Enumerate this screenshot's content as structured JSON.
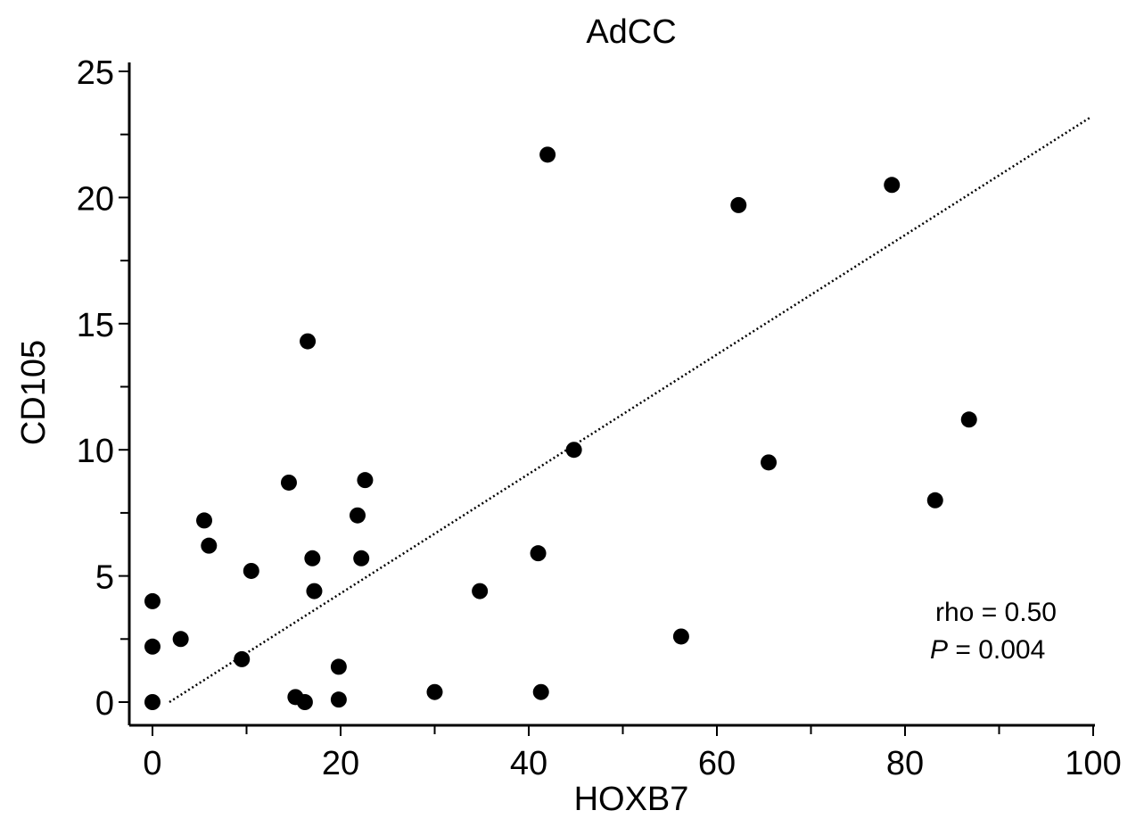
{
  "chart_data": {
    "type": "scatter",
    "title": "AdCC",
    "xlabel": "HOXB7",
    "ylabel": "CD105",
    "xlim": [
      0,
      100
    ],
    "ylim": [
      0,
      25
    ],
    "x_ticks": [
      0,
      20,
      40,
      60,
      80,
      100
    ],
    "y_ticks": [
      0,
      5,
      10,
      15,
      20,
      25
    ],
    "grid": false,
    "points": [
      {
        "x": 0,
        "y": 0
      },
      {
        "x": 0,
        "y": 2.2
      },
      {
        "x": 0,
        "y": 4.0
      },
      {
        "x": 3,
        "y": 2.5
      },
      {
        "x": 5.5,
        "y": 7.2
      },
      {
        "x": 6,
        "y": 6.2
      },
      {
        "x": 9.5,
        "y": 1.7
      },
      {
        "x": 10.5,
        "y": 5.2
      },
      {
        "x": 14.5,
        "y": 8.7
      },
      {
        "x": 15.2,
        "y": 0.2
      },
      {
        "x": 16.2,
        "y": 0
      },
      {
        "x": 16.5,
        "y": 14.3
      },
      {
        "x": 17,
        "y": 5.7
      },
      {
        "x": 17.2,
        "y": 4.4
      },
      {
        "x": 19.8,
        "y": 0.1
      },
      {
        "x": 19.8,
        "y": 1.4
      },
      {
        "x": 21.8,
        "y": 7.4
      },
      {
        "x": 22.2,
        "y": 5.7
      },
      {
        "x": 22.6,
        "y": 8.8
      },
      {
        "x": 30,
        "y": 0.4
      },
      {
        "x": 34.8,
        "y": 4.4
      },
      {
        "x": 41,
        "y": 5.9
      },
      {
        "x": 41.3,
        "y": 0.4
      },
      {
        "x": 42,
        "y": 21.7
      },
      {
        "x": 44.8,
        "y": 10.0
      },
      {
        "x": 56.2,
        "y": 2.6
      },
      {
        "x": 62.3,
        "y": 19.7
      },
      {
        "x": 65.5,
        "y": 9.5
      },
      {
        "x": 78.6,
        "y": 20.5
      },
      {
        "x": 83.2,
        "y": 8.0
      },
      {
        "x": 86.8,
        "y": 11.2
      }
    ],
    "trendline": {
      "x": [
        1.8,
        99.8
      ],
      "y": [
        0,
        23.2
      ],
      "style": "dotted"
    },
    "annotations": {
      "rho_text": "rho = 0.50",
      "p_symbol": "P",
      "p_text": " = 0.004"
    }
  }
}
